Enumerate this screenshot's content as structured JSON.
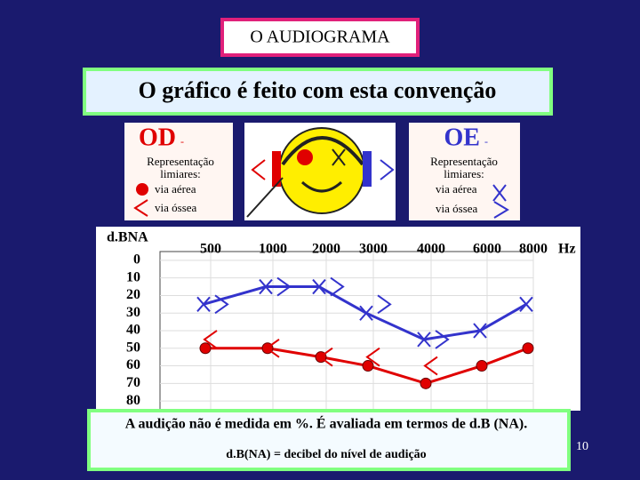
{
  "slide_title": "O AUDIOGRAMA",
  "heading": "O gráfico é feito com esta convenção",
  "od_legend": {
    "ear": "OD",
    "dash": "-",
    "caption": [
      "Representação",
      "limiares:"
    ],
    "air": "via aérea",
    "bone": "via óssea"
  },
  "oe_legend": {
    "ear": "OE",
    "dash": "-",
    "caption": [
      "Representação",
      "limiares:"
    ],
    "air": "via aérea",
    "bone": "via óssea"
  },
  "footer": [
    "A audição não é medida em %. É avaliada em termos de d.B (NA).",
    "d.B(NA) = decibel do nível de audição"
  ],
  "page_number": "10",
  "chart_data": {
    "type": "line",
    "ylabel": "d.BNA",
    "xlabel": "Hz",
    "categories": [
      "500",
      "1000",
      "2000",
      "3000",
      "4000",
      "6000",
      "8000"
    ],
    "ylim": [
      -5,
      85
    ],
    "y_reversed": true,
    "yticks": [
      0,
      10,
      20,
      30,
      40,
      50,
      60,
      70,
      80
    ],
    "series": [
      {
        "color": "#e00000",
        "marker": "circle",
        "connected": true,
        "values": [
          50,
          50,
          55,
          60,
          70,
          60,
          50
        ]
      },
      {
        "color": "#e00000",
        "marker": "left-angle",
        "connected": false,
        "values": [
          45,
          50,
          55,
          55,
          60,
          null,
          null
        ]
      },
      {
        "color": "#3333cc",
        "marker": "cross",
        "connected": true,
        "values": [
          25,
          15,
          15,
          30,
          45,
          40,
          25
        ]
      },
      {
        "color": "#3333cc",
        "marker": "right-angle",
        "connected": false,
        "values": [
          25,
          15,
          15,
          25,
          45,
          null,
          null
        ]
      }
    ]
  }
}
